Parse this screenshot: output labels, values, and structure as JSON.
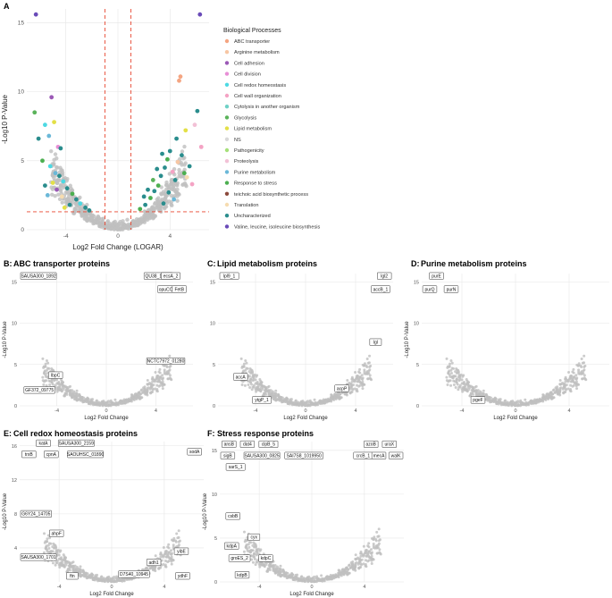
{
  "colors": {
    "grid": "#e6e6e6",
    "point_ns": "#bfbfbf",
    "threshold": "#e8452f",
    "callout_border": "#333333",
    "callout_line": "#8cc63f"
  },
  "chart_data": [
    {
      "panel": "A",
      "type": "scatter",
      "title": "",
      "xlabel": "Log2 Fold Change (LOGAR)",
      "ylabel": "-Log10 P-Value",
      "xticks": [
        "-4",
        "0",
        "4"
      ],
      "yticks": [
        "0",
        "5",
        "10",
        "15"
      ],
      "xlim": [
        -7,
        7
      ],
      "ylim": [
        0,
        16
      ],
      "thresholds": {
        "x": [
          -1,
          1
        ],
        "y": 1.3
      },
      "legend": {
        "title": "Biological Processes",
        "position": "right",
        "entries": [
          {
            "label": "ABC transporter",
            "color": "#f4a582"
          },
          {
            "label": "Arginine metabolism",
            "color": "#f7c6a3"
          },
          {
            "label": "Cell adhesion",
            "color": "#9b59b6"
          },
          {
            "label": "Cell division",
            "color": "#e88fd6"
          },
          {
            "label": "Cell redox homeostasis",
            "color": "#4dd9e3"
          },
          {
            "label": "Cell wall organization",
            "color": "#f4a3c4"
          },
          {
            "label": "Cytolysis in another organism",
            "color": "#6fd1c6"
          },
          {
            "label": "Glycolysis",
            "color": "#5ab35a"
          },
          {
            "label": "Lipid metabolism",
            "color": "#e3e047"
          },
          {
            "label": "NS",
            "color": "#d9d9d9"
          },
          {
            "label": "Pathogenicity",
            "color": "#a6e07a"
          },
          {
            "label": "Proteolysis",
            "color": "#f2c1d6"
          },
          {
            "label": "Purine metabolism",
            "color": "#6bb8d8"
          },
          {
            "label": "Response to stress",
            "color": "#4caf50"
          },
          {
            "label": "teichoic acid biosynthetic process",
            "color": "#8b4a3c"
          },
          {
            "label": "Translation",
            "color": "#f6dcb0"
          },
          {
            "label": "Uncharacterized",
            "color": "#2a8d8d"
          },
          {
            "label": "Valine, leucine, isoleucine biosynthesis",
            "color": "#6a4bb8"
          }
        ]
      },
      "highlighted_points": [
        {
          "x": -6.3,
          "y": 15.6,
          "cat": "Valine, leucine, isoleucine biosynthesis"
        },
        {
          "x": 6.3,
          "y": 15.6,
          "cat": "Valine, leucine, isoleucine biosynthesis"
        },
        {
          "x": 4.8,
          "y": 11.1,
          "cat": "ABC transporter"
        },
        {
          "x": 4.7,
          "y": 10.8,
          "cat": "ABC transporter"
        },
        {
          "x": -6.4,
          "y": 8.5,
          "cat": "Glycolysis"
        },
        {
          "x": -5.1,
          "y": 9.6,
          "cat": "Cell adhesion"
        },
        {
          "x": -5.6,
          "y": 7.6,
          "cat": "Cell redox homeostasis"
        },
        {
          "x": -4.9,
          "y": 7.8,
          "cat": "Lipid metabolism"
        },
        {
          "x": -6.1,
          "y": 6.6,
          "cat": "Uncharacterized"
        },
        {
          "x": -5.3,
          "y": 6.8,
          "cat": "Purine metabolism"
        },
        {
          "x": -4.6,
          "y": 6.0,
          "cat": "Cell division"
        },
        {
          "x": -4.4,
          "y": 5.9,
          "cat": "Uncharacterized"
        },
        {
          "x": -5.8,
          "y": 5.0,
          "cat": "Response to stress"
        },
        {
          "x": -5.2,
          "y": 4.6,
          "cat": "Cell redox homeostasis"
        },
        {
          "x": -4.8,
          "y": 4.1,
          "cat": "Purine metabolism"
        },
        {
          "x": -4.5,
          "y": 3.9,
          "cat": "Uncharacterized"
        },
        {
          "x": -5.0,
          "y": 3.4,
          "cat": "Lipid metabolism"
        },
        {
          "x": -4.2,
          "y": 3.5,
          "cat": "Cell redox homeostasis"
        },
        {
          "x": -5.6,
          "y": 3.2,
          "cat": "Uncharacterized"
        },
        {
          "x": -4.7,
          "y": 2.9,
          "cat": "Cell adhesion"
        },
        {
          "x": -3.9,
          "y": 3.0,
          "cat": "Uncharacterized"
        },
        {
          "x": -3.5,
          "y": 2.6,
          "cat": "Response to stress"
        },
        {
          "x": -4.3,
          "y": 2.4,
          "cat": "Translation"
        },
        {
          "x": -3.2,
          "y": 2.2,
          "cat": "Uncharacterized"
        },
        {
          "x": -5.4,
          "y": 2.5,
          "cat": "Purine metabolism"
        },
        {
          "x": -2.9,
          "y": 1.9,
          "cat": "Cell redox homeostasis"
        },
        {
          "x": -3.7,
          "y": 1.8,
          "cat": "Uncharacterized"
        },
        {
          "x": -4.1,
          "y": 1.6,
          "cat": "Lipid metabolism"
        },
        {
          "x": -2.5,
          "y": 1.6,
          "cat": "Uncharacterized"
        },
        {
          "x": 2.1,
          "y": 1.8,
          "cat": "Uncharacterized"
        },
        {
          "x": 2.5,
          "y": 2.3,
          "cat": "Response to stress"
        },
        {
          "x": 2.8,
          "y": 2.8,
          "cat": "Uncharacterized"
        },
        {
          "x": 3.1,
          "y": 3.2,
          "cat": "Response to stress"
        },
        {
          "x": 3.3,
          "y": 3.9,
          "cat": "Uncharacterized"
        },
        {
          "x": 3.6,
          "y": 4.5,
          "cat": "Uncharacterized"
        },
        {
          "x": 3.8,
          "y": 5.1,
          "cat": "Response to stress"
        },
        {
          "x": 4.0,
          "y": 5.7,
          "cat": "Uncharacterized"
        },
        {
          "x": 3.4,
          "y": 5.5,
          "cat": "Uncharacterized"
        },
        {
          "x": 4.2,
          "y": 4.2,
          "cat": "Cell wall organization"
        },
        {
          "x": 4.4,
          "y": 3.6,
          "cat": "Uncharacterized"
        },
        {
          "x": 4.6,
          "y": 4.9,
          "cat": "Arginine metabolism"
        },
        {
          "x": 4.9,
          "y": 5.4,
          "cat": "Uncharacterized"
        },
        {
          "x": 5.1,
          "y": 4.1,
          "cat": "Response to stress"
        },
        {
          "x": 5.3,
          "y": 3.8,
          "cat": "Translation"
        },
        {
          "x": 5.5,
          "y": 4.6,
          "cat": "Uncharacterized"
        },
        {
          "x": 5.7,
          "y": 3.3,
          "cat": "Cell wall organization"
        },
        {
          "x": 5.9,
          "y": 7.6,
          "cat": "Proteolysis"
        },
        {
          "x": 6.1,
          "y": 8.6,
          "cat": "Uncharacterized"
        },
        {
          "x": 5.2,
          "y": 7.2,
          "cat": "Lipid metabolism"
        },
        {
          "x": 4.5,
          "y": 6.6,
          "cat": "Uncharacterized"
        },
        {
          "x": 6.4,
          "y": 6.0,
          "cat": "Cell wall organization"
        },
        {
          "x": 2.3,
          "y": 2.9,
          "cat": "Uncharacterized"
        },
        {
          "x": 2.7,
          "y": 3.6,
          "cat": "Glycolysis"
        },
        {
          "x": 3.0,
          "y": 4.4,
          "cat": "Uncharacterized"
        },
        {
          "x": 3.9,
          "y": 2.7,
          "cat": "Uncharacterized"
        },
        {
          "x": 4.3,
          "y": 2.2,
          "cat": "Purine metabolism"
        },
        {
          "x": 1.7,
          "y": 1.5,
          "cat": "Response to stress"
        },
        {
          "x": 2.0,
          "y": 2.4,
          "cat": "Uncharacterized"
        },
        {
          "x": 3.5,
          "y": 1.9,
          "cat": "Uncharacterized"
        },
        {
          "x": -2.2,
          "y": 1.4,
          "cat": "Uncharacterized"
        }
      ]
    },
    {
      "panel": "B",
      "type": "scatter",
      "title": "ABC transporter proteins",
      "xlabel": "Log2 Fold Change",
      "ylabel": "-Log10 P-Value",
      "xticks": [
        "-4",
        "0",
        "4"
      ],
      "yticks": [
        "0",
        "5",
        "10",
        "15"
      ],
      "xlim": [
        -7,
        7
      ],
      "ylim": [
        0,
        16
      ],
      "labels": [
        {
          "text": "SAUSA300_1892",
          "x": -6.3,
          "y": 15.6
        },
        {
          "text": "QU38_11580",
          "x": 4.2,
          "y": 15.6
        },
        {
          "text": "ecsA_2",
          "x": 5.2,
          "y": 15.6
        },
        {
          "text": "opuCC_1",
          "x": 5.0,
          "y": 14.0
        },
        {
          "text": "FetB",
          "x": 5.9,
          "y": 14.0
        },
        {
          "text": "NCTC7972_01280",
          "x": 4.8,
          "y": 5.3
        },
        {
          "text": "lbpC",
          "x": -4.1,
          "y": 3.6
        },
        {
          "text": "GF372_09775",
          "x": -5.4,
          "y": 1.8
        }
      ]
    },
    {
      "panel": "C",
      "type": "scatter",
      "title": "Lipid metabolism proteins",
      "xlabel": "Log2 Fold Change",
      "ylabel": "",
      "xticks": [
        "-4",
        "0",
        "4"
      ],
      "yticks": [
        "0",
        "5",
        "10",
        "15"
      ],
      "xlim": [
        -7,
        7
      ],
      "ylim": [
        0,
        16
      ],
      "labels": [
        {
          "text": "lpl9_1",
          "x": -6.1,
          "y": 15.6
        },
        {
          "text": "lgl2",
          "x": 6.3,
          "y": 15.6
        },
        {
          "text": "accB_1",
          "x": 6.0,
          "y": 14.0
        },
        {
          "text": "lgl",
          "x": 5.6,
          "y": 7.6
        },
        {
          "text": "accA",
          "x": -5.2,
          "y": 3.4
        },
        {
          "text": "acpP",
          "x": 2.9,
          "y": 2.0
        },
        {
          "text": "ytgP_1",
          "x": -3.5,
          "y": 0.6
        }
      ]
    },
    {
      "panel": "D",
      "type": "scatter",
      "title": "Purine metabolism proteins",
      "xlabel": "Log2 Fold Change",
      "ylabel": "-Log10 P-Value",
      "xticks": [
        "-4",
        "0",
        "4"
      ],
      "yticks": [
        "0",
        "5",
        "10",
        "15"
      ],
      "xlim": [
        -7,
        7
      ],
      "ylim": [
        0,
        16
      ],
      "labels": [
        {
          "text": "purE",
          "x": -5.9,
          "y": 15.6
        },
        {
          "text": "purQ",
          "x": -6.4,
          "y": 14.0
        },
        {
          "text": "purN",
          "x": -4.8,
          "y": 14.0
        },
        {
          "text": "pgeF",
          "x": -2.8,
          "y": 0.6
        }
      ]
    },
    {
      "panel": "E",
      "type": "scatter",
      "title": "Cell redox homeostasis proteins",
      "xlabel": "Log2 Fold Change",
      "ylabel": "-Log10 P-Value",
      "xticks": [
        "-4",
        "0",
        "4"
      ],
      "yticks": [
        "4",
        "8",
        "12",
        "16"
      ],
      "xlim": [
        -7,
        7
      ],
      "ylim": [
        0,
        16.5
      ],
      "labels": [
        {
          "text": "katA",
          "x": -5.2,
          "y": 16.2
        },
        {
          "text": "SAUSA300_2159",
          "x": -2.7,
          "y": 16.2
        },
        {
          "text": "trxB",
          "x": -6.3,
          "y": 14.9
        },
        {
          "text": "cpnA",
          "x": -4.6,
          "y": 14.9
        },
        {
          "text": "SAOUHSC_01890",
          "x": -2.0,
          "y": 14.9
        },
        {
          "text": "sodA",
          "x": 6.3,
          "y": 15.2
        },
        {
          "text": "G6Y24_14705",
          "x": -5.8,
          "y": 7.9
        },
        {
          "text": "ahpF",
          "x": -4.2,
          "y": 5.6
        },
        {
          "text": "SAUSA300_1701",
          "x": -5.7,
          "y": 2.8
        },
        {
          "text": "ftn",
          "x": -3.0,
          "y": 0.6
        },
        {
          "text": "adh1",
          "x": 3.2,
          "y": 2.2
        },
        {
          "text": "D7S40_10945",
          "x": 1.7,
          "y": 0.8
        },
        {
          "text": "yibE",
          "x": 5.3,
          "y": 3.5
        },
        {
          "text": "ydhF",
          "x": 5.4,
          "y": 0.6
        }
      ]
    },
    {
      "panel": "F",
      "type": "scatter",
      "title": "Stress response proteins",
      "xlabel": "Log2 Fold Change",
      "ylabel": "-Log10 P-Value",
      "xticks": [
        "-4",
        "0",
        "4"
      ],
      "yticks": [
        "0",
        "5",
        "10",
        "15"
      ],
      "xlim": [
        -7,
        7
      ],
      "ylim": [
        0,
        16
      ],
      "labels": [
        {
          "text": "ansB",
          "x": -6.3,
          "y": 15.6
        },
        {
          "text": "dat4",
          "x": -4.9,
          "y": 15.6
        },
        {
          "text": "clpB_5",
          "x": -3.3,
          "y": 15.6
        },
        {
          "text": "sigB",
          "x": -6.4,
          "y": 14.3
        },
        {
          "text": "SAUSA300_0825",
          "x": -3.8,
          "y": 14.3
        },
        {
          "text": "SAI7S8_1019950",
          "x": -0.6,
          "y": 14.3
        },
        {
          "text": "sarS_1",
          "x": -5.8,
          "y": 13.0
        },
        {
          "text": "azoB",
          "x": 4.5,
          "y": 15.6
        },
        {
          "text": "uraX",
          "x": 5.9,
          "y": 15.6
        },
        {
          "text": "crcB_1",
          "x": 3.9,
          "y": 14.3
        },
        {
          "text": "mecA",
          "x": 5.1,
          "y": 14.3
        },
        {
          "text": "walK",
          "x": 6.4,
          "y": 14.3
        },
        {
          "text": "csbB",
          "x": -6.0,
          "y": 7.4
        },
        {
          "text": "cyx",
          "x": -4.4,
          "y": 5.0
        },
        {
          "text": "kdpA",
          "x": -6.1,
          "y": 4.0
        },
        {
          "text": "groES_2",
          "x": -5.5,
          "y": 2.6
        },
        {
          "text": "kdpC",
          "x": -3.5,
          "y": 2.6
        },
        {
          "text": "kdpB",
          "x": -5.3,
          "y": 0.7
        }
      ]
    }
  ]
}
